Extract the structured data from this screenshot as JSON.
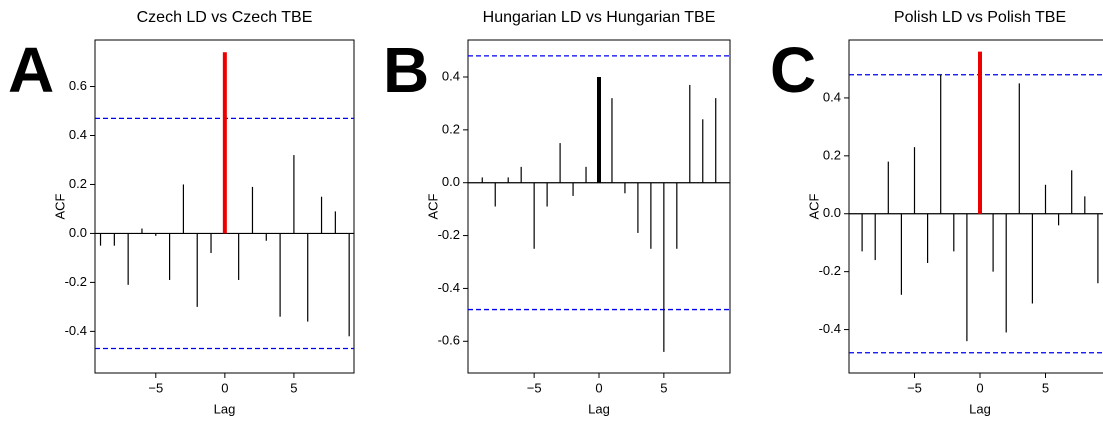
{
  "chart_data": [
    {
      "type": "stem",
      "panel": "A",
      "title": "Czech LD vs Czech TBE",
      "x_label": "Lag",
      "y_label": "ACF",
      "x": [
        -9,
        -8,
        -7,
        -6,
        -5,
        -4,
        -3,
        -2,
        -1,
        0,
        1,
        2,
        3,
        4,
        5,
        6,
        7,
        8,
        9
      ],
      "values": [
        -0.05,
        -0.05,
        -0.21,
        0.02,
        -0.01,
        -0.19,
        0.2,
        -0.3,
        -0.08,
        0.74,
        -0.19,
        0.19,
        -0.03,
        -0.34,
        0.32,
        -0.36,
        0.15,
        0.09,
        -0.42
      ],
      "color": "#000000",
      "highlight_color": "#ee0000",
      "hlines": [
        0.47,
        -0.47
      ],
      "hline_color": "#0000ee",
      "xlim": [
        -9.4,
        9.35
      ],
      "ylim": [
        -0.57,
        0.79
      ],
      "xticks": [
        {
          "value": -5,
          "label": "−5"
        },
        0,
        5
      ],
      "yticks": [
        -0.4,
        -0.2,
        {
          "value": 0,
          "label": "0.0"
        },
        0.2,
        0.4,
        0.6
      ]
    },
    {
      "type": "stem",
      "panel": "B",
      "title": "Hungarian LD vs Hungarian TBE",
      "x_label": "Lag",
      "y_label": "ACF",
      "x": [
        -9,
        -8,
        -7,
        -6,
        -5,
        -4,
        -3,
        -2,
        -1,
        0,
        1,
        2,
        3,
        4,
        5,
        6,
        7,
        8,
        9
      ],
      "values": [
        0.02,
        -0.09,
        0.02,
        0.06,
        -0.25,
        -0.09,
        0.15,
        -0.05,
        0.06,
        0.4,
        0.32,
        -0.04,
        -0.19,
        -0.25,
        -0.64,
        -0.25,
        0.37,
        0.24,
        0.32
      ],
      "color": "#000000",
      "highlight_color": "#000000",
      "hlines": [
        0.48,
        -0.48
      ],
      "hline_color": "#0000ee",
      "xlim": [
        -10.1,
        10.1
      ],
      "ylim": [
        -0.72,
        0.54
      ],
      "xticks": [
        {
          "value": -5,
          "label": "−5"
        },
        0,
        5
      ],
      "yticks": [
        -0.6,
        -0.4,
        -0.2,
        {
          "value": 0,
          "label": "0.0"
        },
        0.2,
        0.4
      ]
    },
    {
      "type": "stem",
      "panel": "C",
      "title": "Polish LD vs Polish TBE",
      "x_label": "Lag",
      "y_label": "ACF",
      "x": [
        -9,
        -8,
        -7,
        -6,
        -5,
        -4,
        -3,
        -2,
        -1,
        0,
        1,
        2,
        3,
        4,
        5,
        6,
        7,
        8,
        9
      ],
      "values": [
        -0.13,
        -0.16,
        0.18,
        -0.28,
        0.23,
        -0.17,
        0.48,
        -0.13,
        -0.44,
        0.56,
        -0.2,
        -0.41,
        0.45,
        -0.31,
        0.1,
        -0.04,
        0.15,
        0.06,
        -0.24
      ],
      "color": "#000000",
      "highlight_color": "#ee0000",
      "hlines": [
        0.48,
        -0.48
      ],
      "hline_color": "#0000ee",
      "xlim": [
        -10,
        10
      ],
      "ylim": [
        -0.55,
        0.6
      ],
      "xticks": [
        {
          "value": -5,
          "label": "−5"
        },
        0,
        5
      ],
      "yticks": [
        -0.4,
        -0.2,
        {
          "value": 0,
          "label": "0.0"
        },
        0.2,
        0.4
      ]
    }
  ]
}
